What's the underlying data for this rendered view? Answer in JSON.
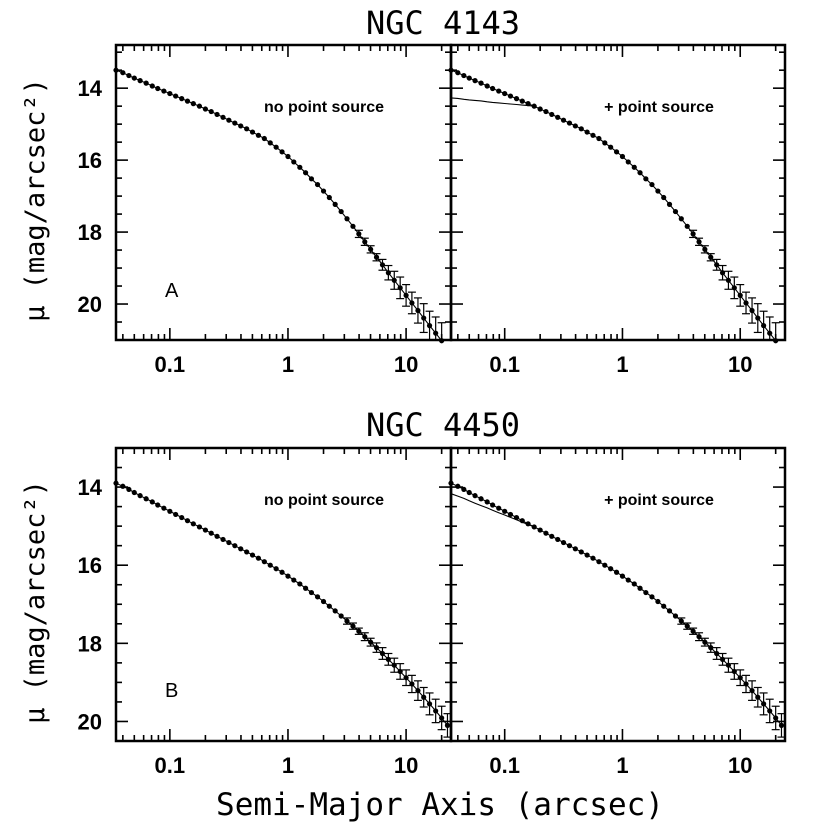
{
  "figure": {
    "xlabel": "Semi-Major Axis (arcsec)",
    "ylabel": "μ (mag/arcsec²)"
  },
  "chart_data": [
    {
      "type": "scatter",
      "title": "NGC 4143",
      "panel_letter": "A",
      "annotation": "no point source",
      "xscale": "log",
      "xlim": [
        0.035,
        24
      ],
      "ylim": [
        21.0,
        12.8
      ],
      "y_inverted": true,
      "xticklabels": [
        "0.1",
        "1",
        "10"
      ],
      "yticklabels": [
        "14",
        "16",
        "18",
        "20"
      ],
      "series": [
        {
          "x": [
            0.035,
            0.04,
            0.045,
            0.05,
            0.056,
            0.063,
            0.071,
            0.079,
            0.089,
            0.1,
            0.112,
            0.126,
            0.141,
            0.158,
            0.178,
            0.2,
            0.224,
            0.251,
            0.282,
            0.316,
            0.355,
            0.398,
            0.447,
            0.501,
            0.562,
            0.631,
            0.708,
            0.794,
            0.891,
            1.0,
            1.12,
            1.26,
            1.41,
            1.58,
            1.78,
            2.0,
            2.24,
            2.51,
            2.82,
            3.16,
            3.55,
            3.98,
            4.47,
            5.01,
            5.62,
            6.31,
            7.08,
            7.94,
            8.91,
            10.0,
            11.2,
            12.6,
            14.1,
            15.8,
            17.8,
            20.0,
            22.4
          ],
          "y": [
            13.5,
            13.57,
            13.65,
            13.72,
            13.79,
            13.86,
            13.94,
            14.01,
            14.08,
            14.15,
            14.22,
            14.29,
            14.36,
            14.43,
            14.5,
            14.58,
            14.65,
            14.73,
            14.81,
            14.89,
            14.97,
            15.05,
            15.13,
            15.22,
            15.31,
            15.4,
            15.52,
            15.64,
            15.77,
            15.9,
            16.05,
            16.2,
            16.35,
            16.52,
            16.68,
            16.86,
            17.04,
            17.23,
            17.43,
            17.63,
            17.84,
            18.05,
            18.27,
            18.48,
            18.7,
            18.91,
            19.13,
            19.34,
            19.55,
            19.76,
            19.97,
            20.18,
            20.39,
            20.6,
            20.81,
            21.02,
            21.23
          ],
          "yerr": [
            0,
            0,
            0,
            0,
            0,
            0,
            0,
            0,
            0,
            0,
            0,
            0,
            0,
            0,
            0,
            0,
            0,
            0,
            0,
            0,
            0,
            0,
            0,
            0,
            0,
            0,
            0,
            0,
            0,
            0,
            0,
            0,
            0,
            0,
            0,
            0,
            0,
            0,
            0,
            0,
            0,
            0.1,
            0.1,
            0.1,
            0.1,
            0.15,
            0.2,
            0.25,
            0.3,
            0.3,
            0.3,
            0.35,
            0.4,
            0.4,
            0.45,
            0.5,
            0.5
          ]
        }
      ]
    },
    {
      "type": "scatter",
      "title": "",
      "annotation": "+ point source",
      "xscale": "log",
      "xlim": [
        0.035,
        24
      ],
      "ylim": [
        21.0,
        12.8
      ],
      "y_inverted": true,
      "xticklabels": [
        "0.1",
        "1",
        "10"
      ],
      "series": [
        {
          "x": [
            0.035,
            0.04,
            0.045,
            0.05,
            0.056,
            0.063,
            0.071,
            0.079,
            0.089,
            0.1,
            0.112,
            0.126,
            0.141,
            0.158,
            0.178,
            0.2,
            0.224,
            0.251,
            0.282,
            0.316,
            0.355,
            0.398,
            0.447,
            0.501,
            0.562,
            0.631,
            0.708,
            0.794,
            0.891,
            1.0,
            1.12,
            1.26,
            1.41,
            1.58,
            1.78,
            2.0,
            2.24,
            2.51,
            2.82,
            3.16,
            3.55,
            3.98,
            4.47,
            5.01,
            5.62,
            6.31,
            7.08,
            7.94,
            8.91,
            10.0,
            11.2,
            12.6,
            14.1,
            15.8,
            17.8,
            20.0,
            22.4
          ],
          "y": [
            13.5,
            13.57,
            13.65,
            13.72,
            13.79,
            13.86,
            13.94,
            14.01,
            14.08,
            14.15,
            14.22,
            14.29,
            14.36,
            14.43,
            14.5,
            14.58,
            14.65,
            14.73,
            14.81,
            14.89,
            14.97,
            15.05,
            15.13,
            15.22,
            15.31,
            15.4,
            15.52,
            15.64,
            15.77,
            15.9,
            16.05,
            16.2,
            16.35,
            16.52,
            16.68,
            16.86,
            17.04,
            17.23,
            17.43,
            17.63,
            17.84,
            18.05,
            18.27,
            18.48,
            18.7,
            18.91,
            19.13,
            19.34,
            19.55,
            19.76,
            19.97,
            20.18,
            20.39,
            20.6,
            20.81,
            21.02,
            21.23
          ],
          "yerr": [
            0,
            0,
            0,
            0,
            0,
            0,
            0,
            0,
            0,
            0,
            0,
            0,
            0,
            0,
            0,
            0,
            0,
            0,
            0,
            0,
            0,
            0,
            0,
            0,
            0,
            0,
            0,
            0,
            0,
            0,
            0,
            0,
            0,
            0,
            0,
            0,
            0,
            0,
            0,
            0,
            0,
            0.1,
            0.1,
            0.1,
            0.1,
            0.15,
            0.2,
            0.25,
            0.3,
            0.3,
            0.3,
            0.35,
            0.4,
            0.4,
            0.45,
            0.5,
            0.5
          ]
        }
      ]
    },
    {
      "type": "scatter",
      "title": "NGC 4450",
      "panel_letter": "B",
      "annotation": "no point source",
      "xscale": "log",
      "xlim": [
        0.035,
        24
      ],
      "ylim": [
        20.5,
        13.0
      ],
      "y_inverted": true,
      "xticklabels": [
        "0.1",
        "1",
        "10"
      ],
      "yticklabels": [
        "14",
        "16",
        "18",
        "20"
      ],
      "series": [
        {
          "x": [
            0.035,
            0.04,
            0.045,
            0.05,
            0.056,
            0.063,
            0.071,
            0.079,
            0.089,
            0.1,
            0.112,
            0.126,
            0.141,
            0.158,
            0.178,
            0.2,
            0.224,
            0.251,
            0.282,
            0.316,
            0.355,
            0.398,
            0.447,
            0.501,
            0.562,
            0.631,
            0.708,
            0.794,
            0.891,
            1.0,
            1.12,
            1.26,
            1.41,
            1.58,
            1.78,
            2.0,
            2.24,
            2.51,
            2.82,
            3.16,
            3.55,
            3.98,
            4.47,
            5.01,
            5.62,
            6.31,
            7.08,
            7.94,
            8.91,
            10.0,
            11.2,
            12.6,
            14.1,
            15.8,
            17.8,
            20.0,
            22.4
          ],
          "y": [
            13.9,
            13.98,
            14.06,
            14.14,
            14.22,
            14.3,
            14.38,
            14.46,
            14.54,
            14.62,
            14.7,
            14.78,
            14.86,
            14.94,
            15.02,
            15.1,
            15.18,
            15.26,
            15.34,
            15.42,
            15.5,
            15.58,
            15.66,
            15.74,
            15.82,
            15.91,
            16.0,
            16.09,
            16.18,
            16.28,
            16.38,
            16.48,
            16.59,
            16.7,
            16.81,
            16.93,
            17.05,
            17.17,
            17.3,
            17.43,
            17.56,
            17.69,
            17.83,
            17.97,
            18.11,
            18.26,
            18.41,
            18.56,
            18.72,
            18.88,
            19.04,
            19.21,
            19.38,
            19.55,
            19.73,
            19.91,
            20.1
          ],
          "yerr": [
            0,
            0,
            0,
            0,
            0,
            0,
            0,
            0,
            0,
            0,
            0,
            0,
            0,
            0,
            0,
            0,
            0,
            0,
            0,
            0,
            0,
            0,
            0,
            0,
            0,
            0,
            0,
            0,
            0,
            0,
            0,
            0,
            0,
            0,
            0,
            0,
            0,
            0,
            0,
            0.08,
            0.08,
            0.08,
            0.1,
            0.1,
            0.12,
            0.15,
            0.15,
            0.18,
            0.2,
            0.2,
            0.22,
            0.25,
            0.25,
            0.28,
            0.3,
            0.3,
            0.3
          ]
        }
      ]
    },
    {
      "type": "scatter",
      "title": "",
      "annotation": "+ point source",
      "xscale": "log",
      "xlim": [
        0.035,
        24
      ],
      "ylim": [
        20.5,
        13.0
      ],
      "y_inverted": true,
      "xticklabels": [
        "0.1",
        "1",
        "10"
      ],
      "series": [
        {
          "x": [
            0.035,
            0.04,
            0.045,
            0.05,
            0.056,
            0.063,
            0.071,
            0.079,
            0.089,
            0.1,
            0.112,
            0.126,
            0.141,
            0.158,
            0.178,
            0.2,
            0.224,
            0.251,
            0.282,
            0.316,
            0.355,
            0.398,
            0.447,
            0.501,
            0.562,
            0.631,
            0.708,
            0.794,
            0.891,
            1.0,
            1.12,
            1.26,
            1.41,
            1.58,
            1.78,
            2.0,
            2.24,
            2.51,
            2.82,
            3.16,
            3.55,
            3.98,
            4.47,
            5.01,
            5.62,
            6.31,
            7.08,
            7.94,
            8.91,
            10.0,
            11.2,
            12.6,
            14.1,
            15.8,
            17.8,
            20.0,
            22.4
          ],
          "y": [
            13.9,
            13.98,
            14.06,
            14.14,
            14.22,
            14.3,
            14.38,
            14.46,
            14.54,
            14.62,
            14.7,
            14.78,
            14.86,
            14.94,
            15.02,
            15.1,
            15.18,
            15.26,
            15.34,
            15.42,
            15.5,
            15.58,
            15.66,
            15.74,
            15.82,
            15.91,
            16.0,
            16.09,
            16.18,
            16.28,
            16.38,
            16.48,
            16.59,
            16.7,
            16.81,
            16.93,
            17.05,
            17.17,
            17.3,
            17.43,
            17.56,
            17.69,
            17.83,
            17.97,
            18.11,
            18.26,
            18.41,
            18.56,
            18.72,
            18.88,
            19.04,
            19.21,
            19.38,
            19.55,
            19.73,
            19.91,
            20.1
          ],
          "yerr": [
            0,
            0,
            0,
            0,
            0,
            0,
            0,
            0,
            0,
            0,
            0,
            0,
            0,
            0,
            0,
            0,
            0,
            0,
            0,
            0,
            0,
            0,
            0,
            0,
            0,
            0,
            0,
            0,
            0,
            0,
            0,
            0,
            0,
            0,
            0,
            0,
            0,
            0,
            0,
            0.08,
            0.08,
            0.08,
            0.1,
            0.1,
            0.12,
            0.15,
            0.15,
            0.18,
            0.2,
            0.2,
            0.22,
            0.25,
            0.25,
            0.28,
            0.3,
            0.3,
            0.3
          ]
        }
      ]
    }
  ]
}
